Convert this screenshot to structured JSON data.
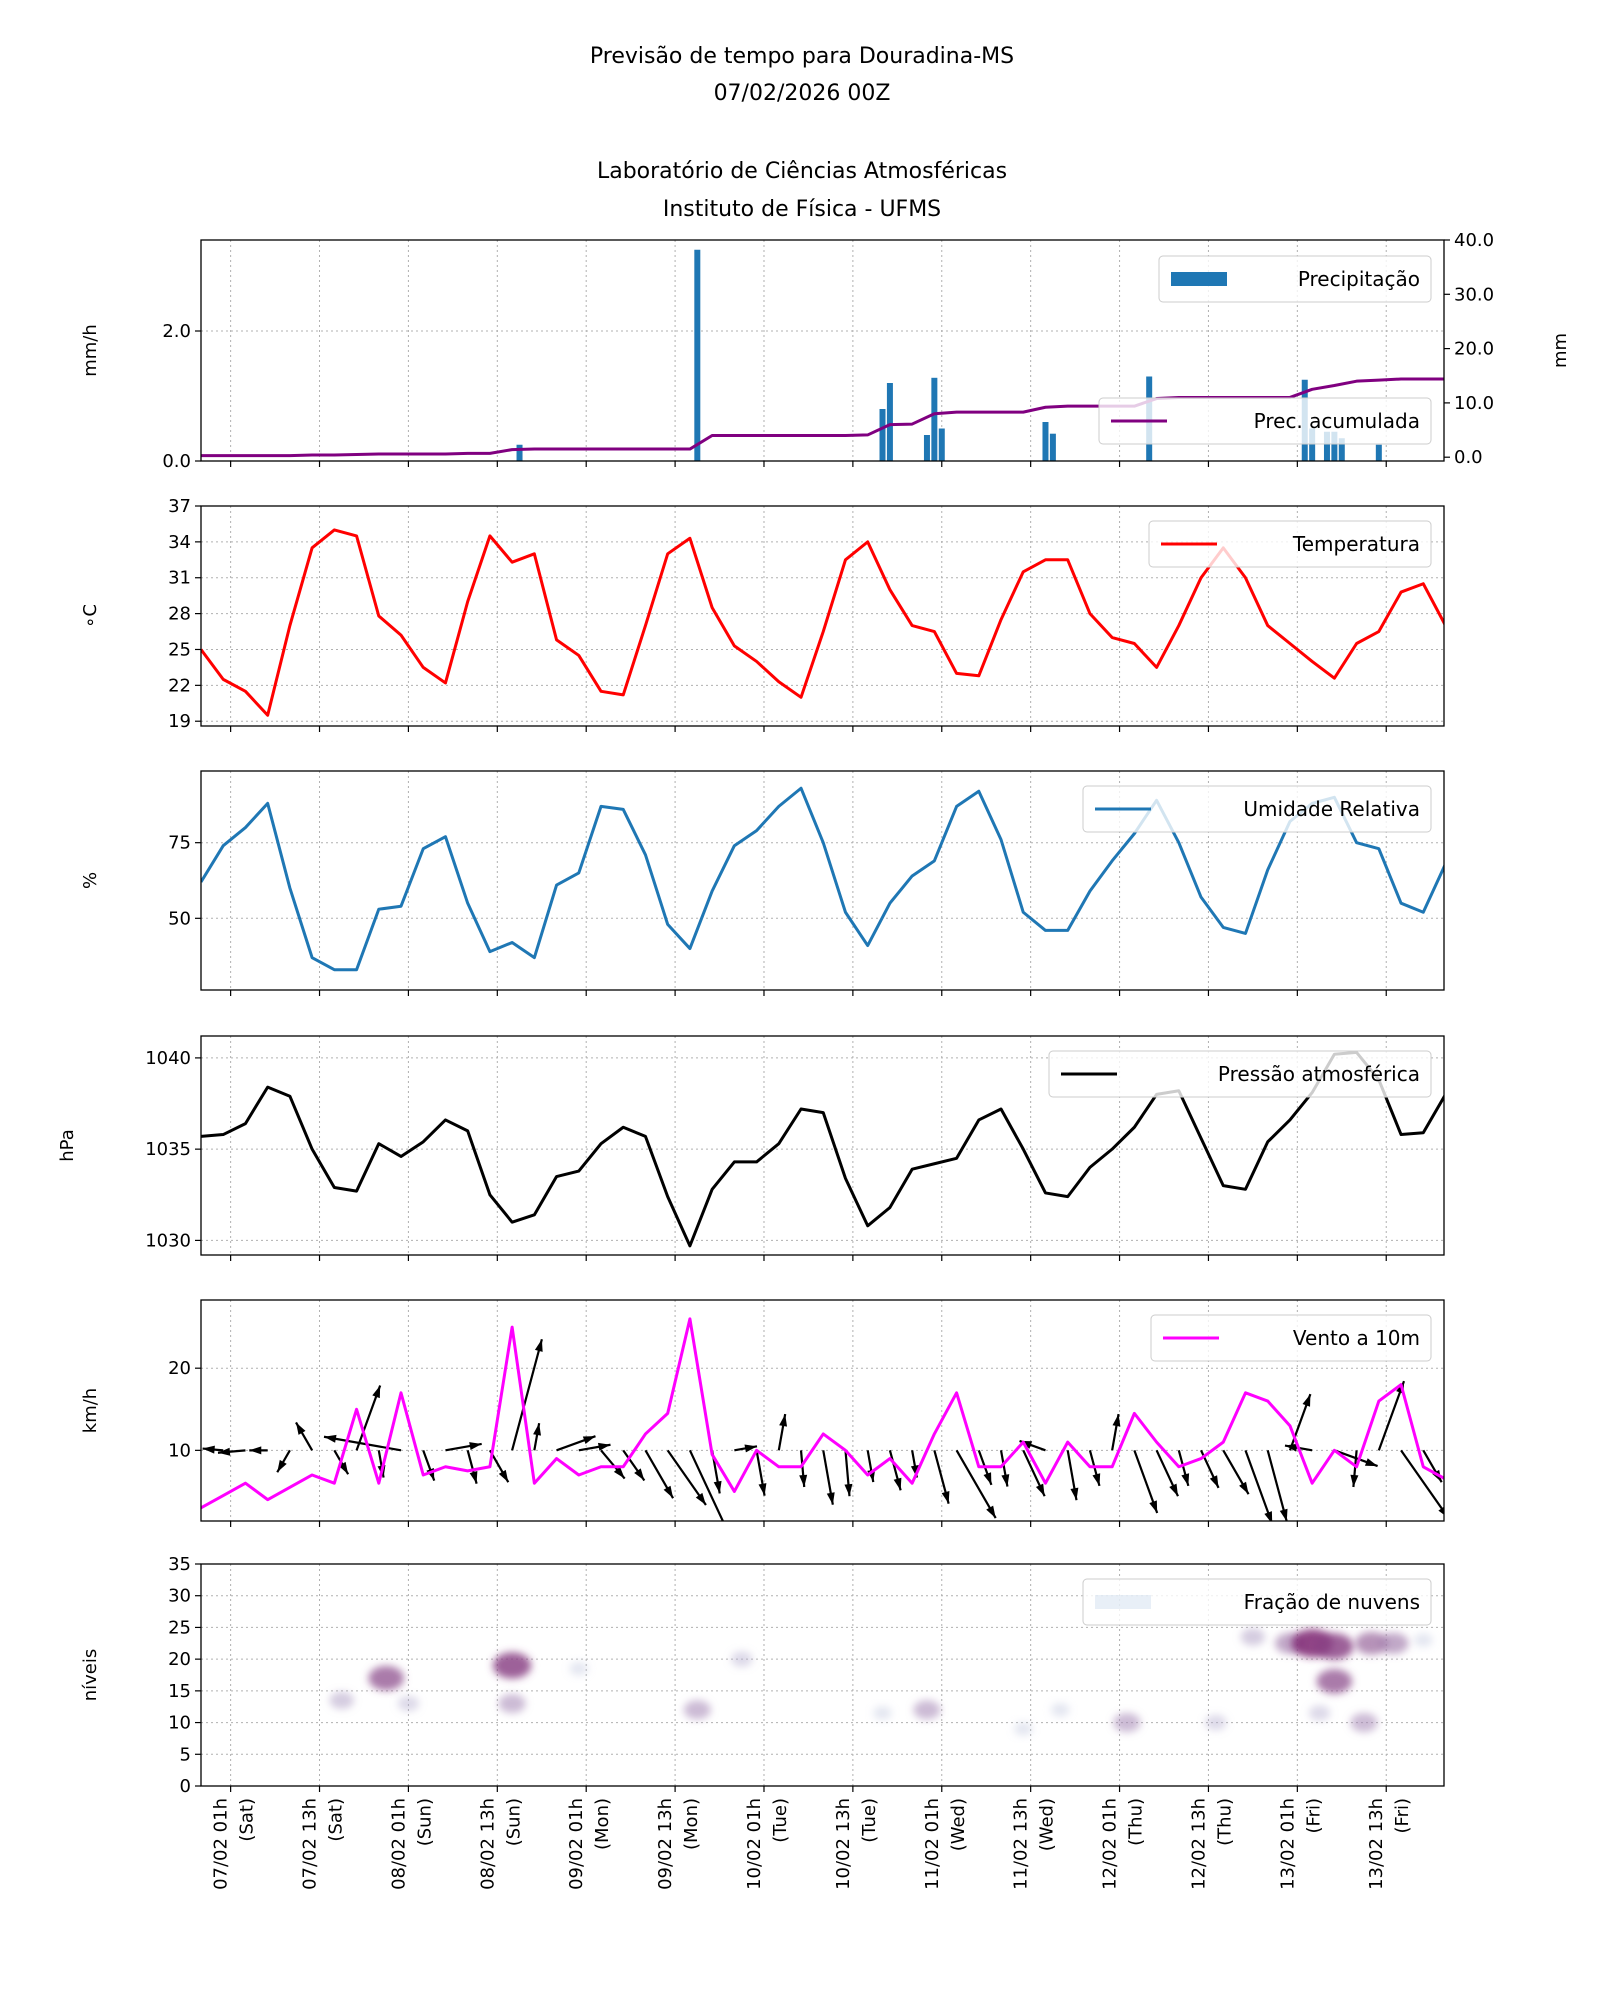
{
  "title": {
    "line1": "Previsão de tempo para Douradina-MS",
    "line2": "07/02/2026 00Z",
    "line3": "Laboratório de Ciências Atmosféricas",
    "line4": "Instituto de Física - UFMS"
  },
  "x_ticks": [
    {
      "time": "07/02 01h",
      "day": "(Sat)"
    },
    {
      "time": "07/02 13h",
      "day": "(Sat)"
    },
    {
      "time": "08/02 01h",
      "day": "(Sun)"
    },
    {
      "time": "08/02 13h",
      "day": "(Sun)"
    },
    {
      "time": "09/02 01h",
      "day": "(Mon)"
    },
    {
      "time": "09/02 13h",
      "day": "(Mon)"
    },
    {
      "time": "10/02 01h",
      "day": "(Tue)"
    },
    {
      "time": "10/02 13h",
      "day": "(Tue)"
    },
    {
      "time": "11/02 01h",
      "day": "(Wed)"
    },
    {
      "time": "11/02 13h",
      "day": "(Wed)"
    },
    {
      "time": "12/02 01h",
      "day": "(Thu)"
    },
    {
      "time": "12/02 13h",
      "day": "(Thu)"
    },
    {
      "time": "13/02 01h",
      "day": "(Fri)"
    },
    {
      "time": "13/02 13h",
      "day": "(Fri)"
    }
  ],
  "x_range": [
    "06/02 21h",
    "13/02 21h"
  ],
  "chart_data": [
    {
      "type": "bar",
      "ylabel": "mm/h",
      "ylabel_right": "mm",
      "ylim": [
        0,
        3.4
      ],
      "ylim_right": [
        -0.7,
        40
      ],
      "yticks": [
        "0.0",
        "2.0"
      ],
      "yticks_right": [
        "0.0",
        "10.0",
        "20.0",
        "30.0",
        "40.0"
      ],
      "grid": true,
      "legend": "top-right",
      "bars": {
        "name": "Precipitação",
        "color": "#1f77b4",
        "times": [
          "08/02 16h",
          "09/02 16h",
          "10/02 17h",
          "10/02 18h",
          "10/02 23h",
          "11/02 00h",
          "11/02 01h",
          "11/02 15h",
          "11/02 16h",
          "12/02 05h",
          "13/02 02h",
          "13/02 03h",
          "13/02 05h",
          "13/02 06h",
          "13/02 07h",
          "13/02 12h"
        ],
        "values": [
          0.25,
          3.25,
          0.8,
          1.2,
          0.4,
          1.28,
          0.5,
          0.6,
          0.42,
          1.3,
          1.25,
          0.5,
          0.45,
          0.45,
          0.35,
          0.25
        ]
      },
      "line": {
        "name": "Prec. acumulada",
        "color": "#800080",
        "axis": "right",
        "values": [
          0.3,
          0.3,
          0.3,
          0.3,
          0.3,
          0.4,
          0.4,
          0.5,
          0.6,
          0.6,
          0.6,
          0.6,
          0.7,
          0.7,
          1.4,
          1.5,
          1.5,
          1.5,
          1.5,
          1.5,
          1.5,
          1.5,
          1.5,
          4,
          4,
          4,
          4,
          4,
          4,
          4,
          4.1,
          6,
          6.1,
          8,
          8.3,
          8.3,
          8.3,
          8.3,
          9.2,
          9.4,
          9.4,
          9.4,
          9.4,
          10.8,
          11,
          11,
          11,
          11,
          11,
          11,
          12.5,
          13.2,
          14,
          14.2,
          14.4,
          14.4,
          14.4
        ]
      }
    },
    {
      "type": "line",
      "ylabel": "$^\\circ$C",
      "ylabel_display": "∘C",
      "ylim": [
        18.6,
        37
      ],
      "yticks": [
        "19",
        "22",
        "25",
        "28",
        "31",
        "34",
        "37"
      ],
      "grid": true,
      "legend": "top-right",
      "series": [
        {
          "name": "Temperatura",
          "color": "#ff0000",
          "values": [
            25,
            22.5,
            21.5,
            19.5,
            27,
            33.5,
            35,
            34.5,
            27.8,
            26.2,
            23.5,
            22.2,
            29,
            34.5,
            32.3,
            33,
            25.8,
            24.5,
            21.5,
            21.2,
            27,
            33,
            34.3,
            28.5,
            25.3,
            24,
            22.3,
            21,
            26.5,
            32.5,
            34,
            30,
            27,
            26.5,
            23,
            22.8,
            27.5,
            31.5,
            32.5,
            32.5,
            28,
            26,
            25.5,
            23.5,
            27,
            31,
            33.5,
            31,
            27,
            25.5,
            24,
            22.6,
            25.5,
            26.5,
            29.8,
            30.5,
            27
          ]
        }
      ]
    },
    {
      "type": "line",
      "ylabel": "%",
      "ylim": [
        26.3,
        98.7
      ],
      "yticks": [
        "50",
        "75"
      ],
      "grid": true,
      "legend": "top-right",
      "series": [
        {
          "name": "Umidade Relativa",
          "color": "#1f77b4",
          "values": [
            62,
            74,
            80,
            88,
            60,
            37,
            33,
            33,
            53,
            54,
            73,
            77,
            55,
            39,
            42,
            37,
            61,
            65,
            87,
            86,
            71,
            48,
            40,
            59,
            74,
            79,
            87,
            93,
            75,
            52,
            41,
            55,
            64,
            69,
            87,
            92,
            76,
            52,
            46,
            46,
            59,
            69,
            78,
            89,
            75,
            57,
            47,
            45,
            66,
            82,
            88,
            90,
            75,
            73,
            55,
            52,
            68
          ]
        }
      ]
    },
    {
      "type": "line",
      "ylabel": "hPa",
      "ylim": [
        1029.2,
        1041.2
      ],
      "yticks": [
        "1030",
        "1035",
        "1040"
      ],
      "grid": true,
      "legend": "top-right",
      "series": [
        {
          "name": "Pressão atmosférica",
          "color": "#000000",
          "values": [
            1035.7,
            1035.8,
            1036.4,
            1038.4,
            1037.9,
            1035,
            1032.9,
            1032.7,
            1035.3,
            1034.6,
            1035.4,
            1036.6,
            1036,
            1032.5,
            1031,
            1031.4,
            1033.5,
            1033.8,
            1035.3,
            1036.2,
            1035.7,
            1032.4,
            1029.7,
            1032.8,
            1034.3,
            1034.3,
            1035.3,
            1037.2,
            1037,
            1033.4,
            1030.8,
            1031.8,
            1033.9,
            1034.2,
            1034.5,
            1036.6,
            1037.2,
            1035,
            1032.6,
            1032.4,
            1034,
            1035,
            1036.2,
            1038,
            1038.2,
            1035.6,
            1033,
            1032.8,
            1035.4,
            1036.6,
            1038.1,
            1040.2,
            1040.3,
            1038.8,
            1035.8,
            1035.9,
            1038
          ]
        }
      ]
    },
    {
      "type": "line",
      "ylabel": "km/h",
      "ylim": [
        1.4,
        28.3
      ],
      "yticks": [
        "10",
        "20"
      ],
      "grid": true,
      "legend": "top-right",
      "series": [
        {
          "name": "Vento a 10m",
          "color": "#ff00ff",
          "values": [
            3,
            4.5,
            6,
            4,
            5.5,
            7,
            6,
            15,
            6,
            17,
            7,
            8,
            7.5,
            8,
            25,
            6,
            9,
            7,
            8,
            8,
            12,
            14.5,
            26,
            9.5,
            5,
            10,
            8,
            8,
            12,
            10,
            7,
            9,
            6,
            12,
            17,
            8,
            8,
            11,
            6,
            11,
            8,
            8,
            14.5,
            11,
            8,
            9,
            11,
            17,
            16,
            13,
            6,
            10,
            8,
            16,
            18,
            8,
            6.5
          ]
        }
      ],
      "arrows": {
        "baseline": 10,
        "color": "#000000",
        "heading_deg": [
          180,
          175,
          185,
          180,
          240,
          120,
          -60,
          70,
          -80,
          170,
          -70,
          10,
          -75,
          -60,
          75,
          80,
          20,
          10,
          -50,
          -55,
          -60,
          -55,
          -65,
          -80,
          10,
          -80,
          80,
          -85,
          -80,
          -85,
          -80,
          -75,
          -80,
          -75,
          -60,
          -70,
          -80,
          -65,
          160,
          -80,
          -75,
          80,
          -70,
          -65,
          -75,
          -65,
          -60,
          -70,
          -75,
          70,
          170,
          -20,
          -95,
          70,
          -55,
          -60,
          -60
        ]
      }
    },
    {
      "type": "heatmap",
      "ylabel": "níveis",
      "ylim": [
        0,
        35
      ],
      "yticks": [
        "0",
        "5",
        "10",
        "15",
        "20",
        "25",
        "30",
        "35"
      ],
      "grid": true,
      "legend": "top-right",
      "name": "Fração de nuvens",
      "color_low": "#c6d7ea",
      "color_high": "#7a1a6a",
      "cells": [
        {
          "time": "07/02 16h",
          "level": 13.5,
          "value": 0.3
        },
        {
          "time": "07/02 22h",
          "level": 17,
          "value": 0.7
        },
        {
          "time": "08/02 01h",
          "level": 13,
          "value": 0.2
        },
        {
          "time": "08/02 15h",
          "level": 19,
          "value": 0.8
        },
        {
          "time": "08/02 15h",
          "level": 13,
          "value": 0.4
        },
        {
          "time": "09/02 00h",
          "level": 18.5,
          "value": 0.1
        },
        {
          "time": "09/02 16h",
          "level": 12,
          "value": 0.4
        },
        {
          "time": "09/02 22h",
          "level": 20,
          "value": 0.2
        },
        {
          "time": "10/02 17h",
          "level": 11.5,
          "value": 0.1
        },
        {
          "time": "10/02 23h",
          "level": 12,
          "value": 0.4
        },
        {
          "time": "11/02 12h",
          "level": 9,
          "value": 0.1
        },
        {
          "time": "11/02 17h",
          "level": 12,
          "value": 0.1
        },
        {
          "time": "12/02 02h",
          "level": 10,
          "value": 0.4
        },
        {
          "time": "12/02 14h",
          "level": 10,
          "value": 0.2
        },
        {
          "time": "12/02 19h",
          "level": 23.5,
          "value": 0.3
        },
        {
          "time": "13/02 00h",
          "level": 22.5,
          "value": 0.5
        },
        {
          "time": "13/02 03h",
          "level": 22.5,
          "value": 0.9
        },
        {
          "time": "13/02 04h",
          "level": 11.5,
          "value": 0.2
        },
        {
          "time": "13/02 06h",
          "level": 22,
          "value": 0.8
        },
        {
          "time": "13/02 06h",
          "level": 16.5,
          "value": 0.7
        },
        {
          "time": "13/02 10h",
          "level": 10,
          "value": 0.4
        },
        {
          "time": "13/02 11h",
          "level": 22.5,
          "value": 0.6
        },
        {
          "time": "13/02 14h",
          "level": 22.5,
          "value": 0.5
        },
        {
          "time": "13/02 18h",
          "level": 23,
          "value": 0.1
        }
      ]
    }
  ],
  "series_times": [
    "06/02 21h",
    "07/02 00h",
    "07/02 03h",
    "07/02 06h",
    "07/02 09h",
    "07/02 12h",
    "07/02 15h",
    "07/02 18h",
    "07/02 21h",
    "08/02 00h",
    "08/02 03h",
    "08/02 06h",
    "08/02 09h",
    "08/02 12h",
    "08/02 15h",
    "08/02 18h",
    "08/02 21h",
    "09/02 00h",
    "09/02 03h",
    "09/02 06h",
    "09/02 09h",
    "09/02 12h",
    "09/02 15h",
    "09/02 18h",
    "09/02 21h",
    "10/02 00h",
    "10/02 03h",
    "10/02 06h",
    "10/02 09h",
    "10/02 12h",
    "10/02 15h",
    "10/02 18h",
    "10/02 21h",
    "11/02 00h",
    "11/02 03h",
    "11/02 06h",
    "11/02 09h",
    "11/02 12h",
    "11/02 15h",
    "11/02 18h",
    "11/02 21h",
    "12/02 00h",
    "12/02 03h",
    "12/02 06h",
    "12/02 09h",
    "12/02 12h",
    "12/02 15h",
    "12/02 18h",
    "12/02 21h",
    "13/02 00h",
    "13/02 03h",
    "13/02 06h",
    "13/02 09h",
    "13/02 12h",
    "13/02 15h",
    "13/02 18h",
    "13/02 21h"
  ]
}
